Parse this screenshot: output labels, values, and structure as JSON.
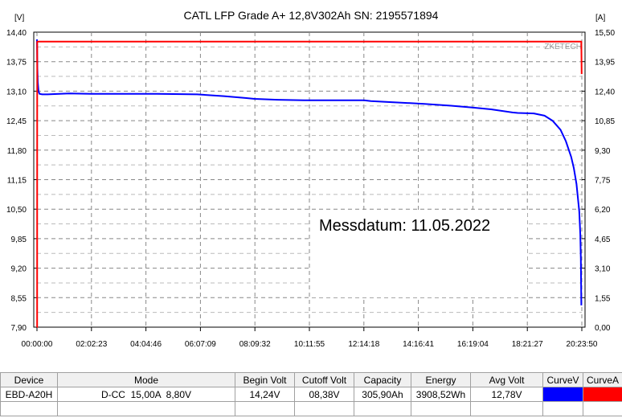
{
  "chart_data": {
    "type": "line",
    "title": "CATL LFP Grade A+ 12,8V302Ah SN: 2195571894",
    "y_left_unit": "[V]",
    "y_right_unit": "[A]",
    "watermark": "ZKETECH",
    "annotation": "Messdatum: 11.05.2022",
    "x_ticks": [
      "00:00:00",
      "02:02:23",
      "04:04:46",
      "06:07:09",
      "08:09:32",
      "10:11:55",
      "12:14:18",
      "14:16:41",
      "16:19:04",
      "18:21:27",
      "20:23:50"
    ],
    "y_left_ticks": [
      "14,40",
      "13,75",
      "13,10",
      "12,45",
      "11,80",
      "11,15",
      "10,50",
      "9,85",
      "9,20",
      "8,55",
      "7,90"
    ],
    "y_right_ticks": [
      "15,50",
      "13,95",
      "12,40",
      "10,85",
      "9,30",
      "7,75",
      "6,20",
      "4,65",
      "3,10",
      "1,55",
      "0,00"
    ],
    "x_range_hours": [
      0,
      20.3972
    ],
    "y_left_range": [
      7.9,
      14.4
    ],
    "y_right_range": [
      0,
      15.5
    ],
    "grid": true,
    "series": [
      {
        "name": "CurveV",
        "axis": "left",
        "color": "#0000ff",
        "x": [
          0,
          0.015,
          0.03,
          0.06,
          0.1,
          0.2,
          0.4,
          1.2,
          2.04,
          3.0,
          4.5,
          6.0,
          7.0,
          7.8,
          8.15,
          9.0,
          10.0,
          11.0,
          12.24,
          12.5,
          13.5,
          14.5,
          15.5,
          16.3,
          17.0,
          17.8,
          18.0,
          18.6,
          19.0,
          19.3,
          19.6,
          19.8,
          20.0,
          20.1,
          20.2,
          20.3,
          20.34,
          20.36,
          20.38
        ],
        "y": [
          14.24,
          13.6,
          13.3,
          13.09,
          13.04,
          13.03,
          13.03,
          13.05,
          13.04,
          13.04,
          13.04,
          13.03,
          12.99,
          12.95,
          12.93,
          12.91,
          12.9,
          12.9,
          12.9,
          12.88,
          12.85,
          12.82,
          12.78,
          12.74,
          12.7,
          12.63,
          12.62,
          12.61,
          12.56,
          12.45,
          12.25,
          12.0,
          11.65,
          11.4,
          11.05,
          10.45,
          9.95,
          9.4,
          8.38
        ]
      },
      {
        "name": "CurveA",
        "axis": "right",
        "color": "#ff0000",
        "x": [
          0,
          0.005,
          0.01,
          20.37,
          20.38,
          20.39
        ],
        "y": [
          0,
          0,
          15.0,
          15.0,
          15.0,
          13.3
        ]
      }
    ]
  },
  "table": {
    "headers": [
      "Device",
      "Mode",
      "Begin Volt",
      "Cutoff Volt",
      "Capacity",
      "Energy",
      "Avg Volt",
      "CurveV",
      "CurveA"
    ],
    "row": [
      "EBD-A20H",
      "D-CC  15,00A  8,80V",
      "14,24V",
      "08,38V",
      "305,90Ah",
      "3908,52Wh",
      "12,78V"
    ],
    "swatches": [
      "#0000ff",
      "#ff0000"
    ]
  }
}
